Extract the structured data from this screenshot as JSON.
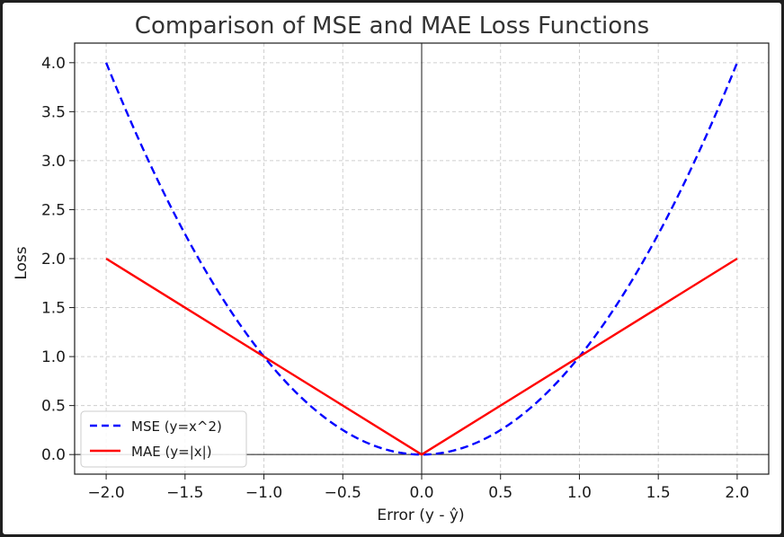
{
  "chart_data": {
    "type": "line",
    "title": "Comparison of MSE and MAE Loss Functions",
    "xlabel": "Error (y - ŷ)",
    "ylabel": "Loss",
    "xlim": [
      -2.2,
      2.2
    ],
    "ylim": [
      -0.2,
      4.2
    ],
    "x_ticks": [
      -2.0,
      -1.5,
      -1.0,
      -0.5,
      0.0,
      0.5,
      1.0,
      1.5,
      2.0
    ],
    "x_tick_labels": [
      "−2.0",
      "−1.5",
      "−1.0",
      "−0.5",
      "0.0",
      "0.5",
      "1.0",
      "1.5",
      "2.0"
    ],
    "y_ticks": [
      0.0,
      0.5,
      1.0,
      1.5,
      2.0,
      2.5,
      3.0,
      3.5,
      4.0
    ],
    "y_tick_labels": [
      "0.0",
      "0.5",
      "1.0",
      "1.5",
      "2.0",
      "2.5",
      "3.0",
      "3.5",
      "4.0"
    ],
    "grid": true,
    "legend_position": "bottom-left",
    "reference_lines": {
      "x": 0,
      "y": 0
    },
    "series": [
      {
        "name": "MSE (y=x^2)",
        "color": "#0000ff",
        "style": "dashed",
        "x": [
          -2.0,
          -1.75,
          -1.5,
          -1.25,
          -1.0,
          -0.75,
          -0.5,
          -0.25,
          0.0,
          0.25,
          0.5,
          0.75,
          1.0,
          1.25,
          1.5,
          1.75,
          2.0
        ],
        "y": [
          4.0,
          3.0625,
          2.25,
          1.5625,
          1.0,
          0.5625,
          0.25,
          0.0625,
          0.0,
          0.0625,
          0.25,
          0.5625,
          1.0,
          1.5625,
          2.25,
          3.0625,
          4.0
        ]
      },
      {
        "name": "MAE (y=|x|)",
        "color": "#ff0000",
        "style": "solid",
        "x": [
          -2.0,
          -1.5,
          -1.0,
          -0.5,
          0.0,
          0.5,
          1.0,
          1.5,
          2.0
        ],
        "y": [
          2.0,
          1.5,
          1.0,
          0.5,
          0.0,
          0.5,
          1.0,
          1.5,
          2.0
        ]
      }
    ]
  }
}
